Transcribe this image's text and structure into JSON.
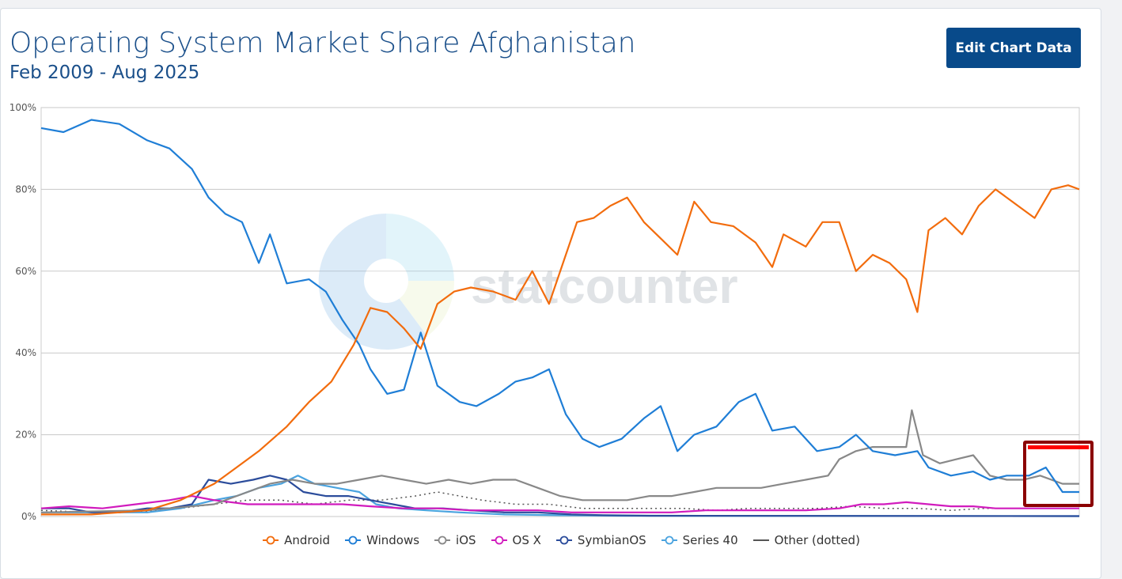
{
  "header": {
    "title": "Operating System Market Share Afghanistan",
    "subtitle": "Feb 2009 - Aug 2025",
    "edit_button": "Edit Chart Data"
  },
  "watermark": "statcounter",
  "colors": {
    "Android": "#f26c0d",
    "Windows": "#1f7ed6",
    "iOS": "#888888",
    "OS X": "#d11bbd",
    "SymbianOS": "#2b4c9b",
    "Series 40": "#4aa3df",
    "Other (dotted)": "#555555",
    "highlight_border": "#8b0000",
    "highlight_top": "#ff0000"
  },
  "chart_data": {
    "type": "line",
    "title": "Operating System Market Share Afghanistan",
    "subtitle": "Feb 2009 - Aug 2025",
    "x_range": [
      "2009-02",
      "2025-08"
    ],
    "ylim": [
      0,
      100
    ],
    "y_ticks": [
      "0%",
      "20%",
      "40%",
      "60%",
      "80%",
      "100%"
    ],
    "grid": true,
    "legend_position": "bottom",
    "series": [
      {
        "name": "Android",
        "points": [
          [
            2009.1,
            0.5
          ],
          [
            2010.0,
            0.5
          ],
          [
            2011.0,
            1.5
          ],
          [
            2011.6,
            4
          ],
          [
            2012.2,
            8
          ],
          [
            2012.6,
            12
          ],
          [
            2013.0,
            16
          ],
          [
            2013.5,
            22
          ],
          [
            2013.9,
            28
          ],
          [
            2014.3,
            33
          ],
          [
            2014.7,
            42
          ],
          [
            2015.0,
            51
          ],
          [
            2015.3,
            50
          ],
          [
            2015.6,
            46
          ],
          [
            2015.9,
            41
          ],
          [
            2016.2,
            52
          ],
          [
            2016.5,
            55
          ],
          [
            2016.8,
            56
          ],
          [
            2017.2,
            55
          ],
          [
            2017.6,
            53
          ],
          [
            2017.9,
            60
          ],
          [
            2018.2,
            52
          ],
          [
            2018.5,
            64
          ],
          [
            2018.7,
            72
          ],
          [
            2019.0,
            73
          ],
          [
            2019.3,
            76
          ],
          [
            2019.6,
            78
          ],
          [
            2019.9,
            72
          ],
          [
            2020.2,
            68
          ],
          [
            2020.5,
            64
          ],
          [
            2020.8,
            77
          ],
          [
            2021.1,
            72
          ],
          [
            2021.5,
            71
          ],
          [
            2021.9,
            67
          ],
          [
            2022.2,
            61
          ],
          [
            2022.4,
            69
          ],
          [
            2022.8,
            66
          ],
          [
            2023.1,
            72
          ],
          [
            2023.4,
            72
          ],
          [
            2023.7,
            60
          ],
          [
            2024.0,
            64
          ],
          [
            2024.3,
            62
          ],
          [
            2024.6,
            58
          ],
          [
            2024.8,
            50
          ],
          [
            2025.0,
            70
          ],
          [
            2025.3,
            73
          ],
          [
            2025.6,
            69
          ],
          [
            2025.9,
            76
          ],
          [
            2026.2,
            80
          ],
          [
            2026.6,
            76
          ],
          [
            2026.9,
            73
          ],
          [
            2027.2,
            80
          ],
          [
            2027.5,
            81
          ],
          [
            2027.7,
            80
          ]
        ]
      },
      {
        "name": "Windows",
        "points": [
          [
            2009.1,
            95
          ],
          [
            2009.5,
            94
          ],
          [
            2010.0,
            97
          ],
          [
            2010.5,
            96
          ],
          [
            2011.0,
            92
          ],
          [
            2011.4,
            90
          ],
          [
            2011.8,
            85
          ],
          [
            2012.1,
            78
          ],
          [
            2012.4,
            74
          ],
          [
            2012.7,
            72
          ],
          [
            2013.0,
            62
          ],
          [
            2013.2,
            69
          ],
          [
            2013.5,
            57
          ],
          [
            2013.9,
            58
          ],
          [
            2014.2,
            55
          ],
          [
            2014.5,
            48
          ],
          [
            2014.8,
            42
          ],
          [
            2015.0,
            36
          ],
          [
            2015.3,
            30
          ],
          [
            2015.6,
            31
          ],
          [
            2015.9,
            45
          ],
          [
            2016.2,
            32
          ],
          [
            2016.6,
            28
          ],
          [
            2016.9,
            27
          ],
          [
            2017.3,
            30
          ],
          [
            2017.6,
            33
          ],
          [
            2017.9,
            34
          ],
          [
            2018.2,
            36
          ],
          [
            2018.5,
            25
          ],
          [
            2018.8,
            19
          ],
          [
            2019.1,
            17
          ],
          [
            2019.5,
            19
          ],
          [
            2019.9,
            24
          ],
          [
            2020.2,
            27
          ],
          [
            2020.5,
            16
          ],
          [
            2020.8,
            20
          ],
          [
            2021.2,
            22
          ],
          [
            2021.6,
            28
          ],
          [
            2021.9,
            30
          ],
          [
            2022.2,
            21
          ],
          [
            2022.6,
            22
          ],
          [
            2023.0,
            16
          ],
          [
            2023.4,
            17
          ],
          [
            2023.7,
            20
          ],
          [
            2024.0,
            16
          ],
          [
            2024.4,
            15
          ],
          [
            2024.8,
            16
          ],
          [
            2025.0,
            12
          ],
          [
            2025.4,
            10
          ],
          [
            2025.8,
            11
          ],
          [
            2026.1,
            9
          ],
          [
            2026.4,
            10
          ],
          [
            2026.8,
            10
          ],
          [
            2027.1,
            12
          ],
          [
            2027.4,
            6
          ],
          [
            2027.7,
            6
          ]
        ]
      },
      {
        "name": "iOS",
        "points": [
          [
            2009.1,
            1
          ],
          [
            2011.0,
            1.5
          ],
          [
            2012.2,
            3
          ],
          [
            2012.8,
            6
          ],
          [
            2013.2,
            8
          ],
          [
            2013.6,
            9
          ],
          [
            2014.0,
            8
          ],
          [
            2014.4,
            8
          ],
          [
            2014.8,
            9
          ],
          [
            2015.2,
            10
          ],
          [
            2015.6,
            9
          ],
          [
            2016.0,
            8
          ],
          [
            2016.4,
            9
          ],
          [
            2016.8,
            8
          ],
          [
            2017.2,
            9
          ],
          [
            2017.6,
            9
          ],
          [
            2018.0,
            7
          ],
          [
            2018.4,
            5
          ],
          [
            2018.8,
            4
          ],
          [
            2019.2,
            4
          ],
          [
            2019.6,
            4
          ],
          [
            2020.0,
            5
          ],
          [
            2020.4,
            5
          ],
          [
            2020.8,
            6
          ],
          [
            2021.2,
            7
          ],
          [
            2021.6,
            7
          ],
          [
            2022.0,
            7
          ],
          [
            2022.4,
            8
          ],
          [
            2022.8,
            9
          ],
          [
            2023.2,
            10
          ],
          [
            2023.4,
            14
          ],
          [
            2023.7,
            16
          ],
          [
            2024.0,
            17
          ],
          [
            2024.3,
            17
          ],
          [
            2024.6,
            17
          ],
          [
            2024.7,
            26
          ],
          [
            2024.9,
            15
          ],
          [
            2025.2,
            13
          ],
          [
            2025.5,
            14
          ],
          [
            2025.8,
            15
          ],
          [
            2026.1,
            10
          ],
          [
            2026.4,
            9
          ],
          [
            2026.7,
            9
          ],
          [
            2027.0,
            10
          ],
          [
            2027.4,
            8
          ],
          [
            2027.7,
            8
          ]
        ]
      },
      {
        "name": "OS X",
        "points": [
          [
            2009.1,
            2
          ],
          [
            2009.6,
            2.5
          ],
          [
            2010.2,
            2
          ],
          [
            2010.8,
            3
          ],
          [
            2011.4,
            4
          ],
          [
            2011.8,
            5
          ],
          [
            2012.2,
            4
          ],
          [
            2012.8,
            3
          ],
          [
            2013.4,
            3
          ],
          [
            2013.9,
            3
          ],
          [
            2014.5,
            3
          ],
          [
            2015.0,
            2.5
          ],
          [
            2015.6,
            2
          ],
          [
            2016.2,
            2
          ],
          [
            2016.8,
            1.5
          ],
          [
            2017.4,
            1.5
          ],
          [
            2018.0,
            1.5
          ],
          [
            2018.6,
            1
          ],
          [
            2019.2,
            1
          ],
          [
            2019.8,
            1
          ],
          [
            2020.4,
            1
          ],
          [
            2021.0,
            1.5
          ],
          [
            2021.6,
            1.5
          ],
          [
            2022.2,
            1.5
          ],
          [
            2022.8,
            1.5
          ],
          [
            2023.4,
            2
          ],
          [
            2023.8,
            3
          ],
          [
            2024.2,
            3
          ],
          [
            2024.6,
            3.5
          ],
          [
            2025.0,
            3
          ],
          [
            2025.4,
            2.5
          ],
          [
            2025.8,
            2.5
          ],
          [
            2026.2,
            2
          ],
          [
            2026.6,
            2
          ],
          [
            2027.0,
            2
          ],
          [
            2027.7,
            2
          ]
        ]
      },
      {
        "name": "SymbianOS",
        "points": [
          [
            2009.1,
            2
          ],
          [
            2009.6,
            2
          ],
          [
            2010.0,
            1
          ],
          [
            2010.5,
            1
          ],
          [
            2011.0,
            2
          ],
          [
            2011.4,
            2
          ],
          [
            2011.8,
            3
          ],
          [
            2012.1,
            9
          ],
          [
            2012.5,
            8
          ],
          [
            2012.9,
            9
          ],
          [
            2013.2,
            10
          ],
          [
            2013.5,
            9
          ],
          [
            2013.8,
            6
          ],
          [
            2014.2,
            5
          ],
          [
            2014.6,
            5
          ],
          [
            2015.0,
            4
          ],
          [
            2015.4,
            3
          ],
          [
            2015.8,
            2
          ],
          [
            2016.3,
            2
          ],
          [
            2016.8,
            1.5
          ],
          [
            2017.4,
            1
          ],
          [
            2018.0,
            1
          ],
          [
            2018.6,
            0.5
          ],
          [
            2019.2,
            0.3
          ],
          [
            2020.0,
            0.2
          ],
          [
            2027.7,
            0.1
          ]
        ]
      },
      {
        "name": "Series 40",
        "points": [
          [
            2009.1,
            1
          ],
          [
            2010.0,
            1
          ],
          [
            2011.0,
            1
          ],
          [
            2011.6,
            2
          ],
          [
            2012.2,
            4
          ],
          [
            2012.6,
            5
          ],
          [
            2013.0,
            7
          ],
          [
            2013.4,
            8
          ],
          [
            2013.7,
            10
          ],
          [
            2014.0,
            8
          ],
          [
            2014.4,
            7
          ],
          [
            2014.8,
            6
          ],
          [
            2015.1,
            3
          ],
          [
            2015.5,
            2
          ],
          [
            2016.0,
            1.5
          ],
          [
            2016.6,
            1
          ],
          [
            2017.4,
            0.5
          ],
          [
            2018.4,
            0.3
          ],
          [
            2019.5,
            0.2
          ],
          [
            2027.7,
            0.1
          ]
        ]
      },
      {
        "name": "Other (dotted)",
        "points": [
          [
            2009.1,
            1.5
          ],
          [
            2010.0,
            1
          ],
          [
            2010.8,
            1
          ],
          [
            2011.6,
            2
          ],
          [
            2012.2,
            3
          ],
          [
            2012.8,
            4
          ],
          [
            2013.4,
            4
          ],
          [
            2014.0,
            3
          ],
          [
            2014.6,
            4
          ],
          [
            2015.2,
            4
          ],
          [
            2015.8,
            5
          ],
          [
            2016.2,
            6
          ],
          [
            2016.6,
            5
          ],
          [
            2017.0,
            4
          ],
          [
            2017.6,
            3
          ],
          [
            2018.2,
            3
          ],
          [
            2018.8,
            2
          ],
          [
            2019.4,
            2
          ],
          [
            2020.0,
            2
          ],
          [
            2020.6,
            2
          ],
          [
            2021.2,
            1.5
          ],
          [
            2021.8,
            2
          ],
          [
            2022.4,
            2
          ],
          [
            2023.0,
            2
          ],
          [
            2023.6,
            2.5
          ],
          [
            2024.2,
            2
          ],
          [
            2024.8,
            2
          ],
          [
            2025.4,
            1.5
          ],
          [
            2026.0,
            2
          ],
          [
            2026.6,
            2
          ],
          [
            2027.2,
            2
          ],
          [
            2027.7,
            2
          ]
        ]
      }
    ]
  }
}
